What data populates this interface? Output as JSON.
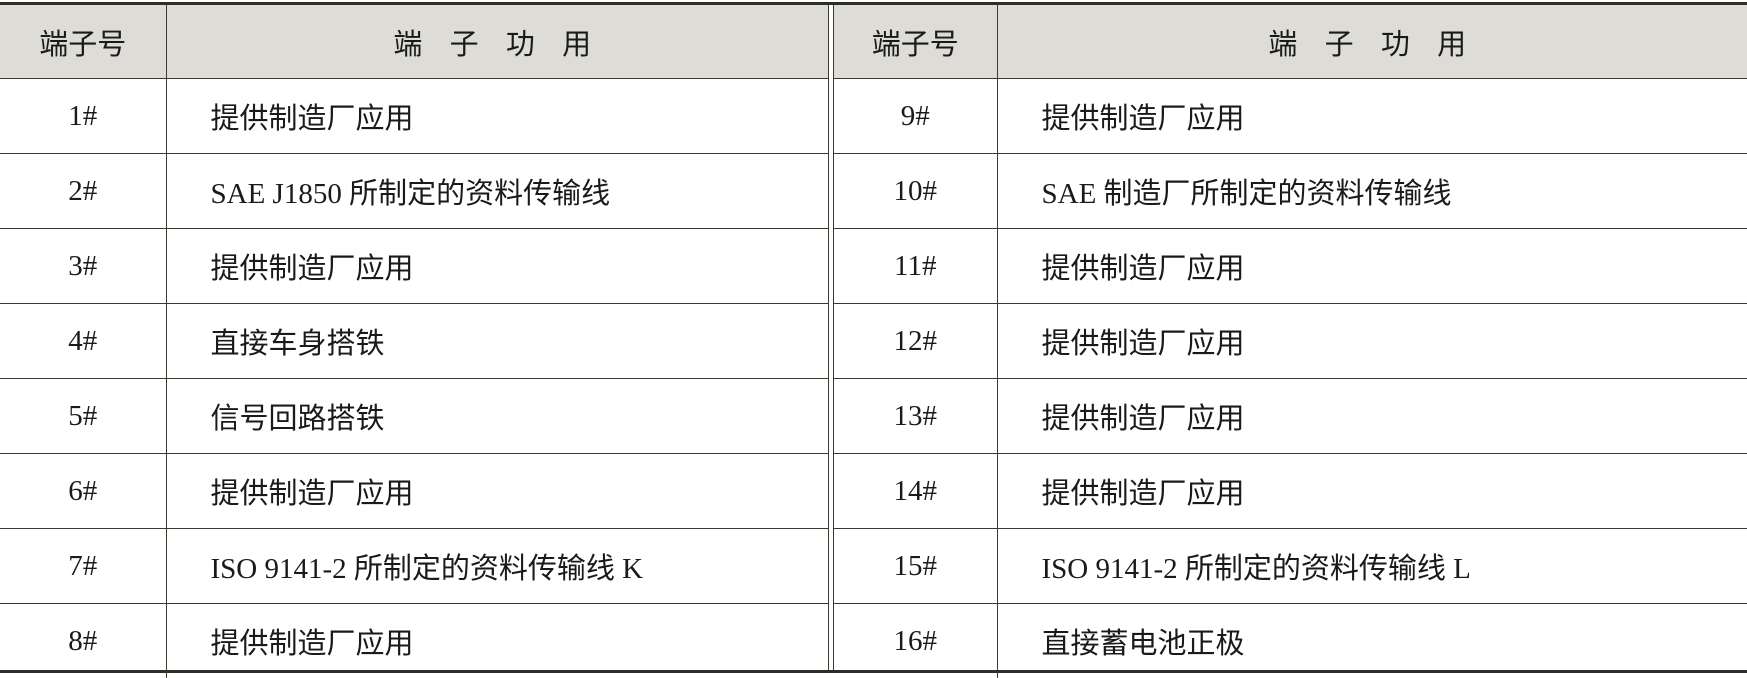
{
  "headers": {
    "pin": "端子号",
    "function": "端 子 功 用"
  },
  "left": [
    {
      "pin": "1#",
      "function": "提供制造厂应用"
    },
    {
      "pin": "2#",
      "function": "SAE J1850 所制定的资料传输线"
    },
    {
      "pin": "3#",
      "function": "提供制造厂应用"
    },
    {
      "pin": "4#",
      "function": "直接车身搭铁"
    },
    {
      "pin": "5#",
      "function": "信号回路搭铁"
    },
    {
      "pin": "6#",
      "function": "提供制造厂应用"
    },
    {
      "pin": "7#",
      "function": "ISO 9141-2 所制定的资料传输线 K"
    },
    {
      "pin": "8#",
      "function": "提供制造厂应用"
    }
  ],
  "right": [
    {
      "pin": "9#",
      "function": "提供制造厂应用"
    },
    {
      "pin": "10#",
      "function": "SAE 制造厂所制定的资料传输线"
    },
    {
      "pin": "11#",
      "function": "提供制造厂应用"
    },
    {
      "pin": "12#",
      "function": "提供制造厂应用"
    },
    {
      "pin": "13#",
      "function": "提供制造厂应用"
    },
    {
      "pin": "14#",
      "function": "提供制造厂应用"
    },
    {
      "pin": "15#",
      "function": "ISO 9141-2 所制定的资料传输线 L"
    },
    {
      "pin": "16#",
      "function": "直接蓄电池正极"
    }
  ]
}
